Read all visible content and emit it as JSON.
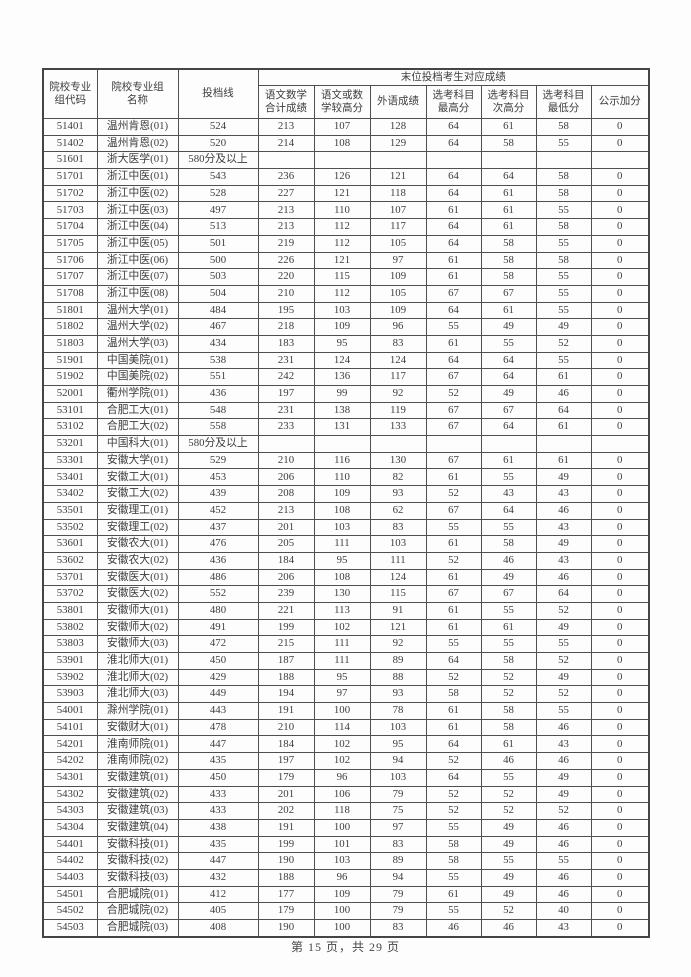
{
  "page": {
    "footer": "第 15 页，共 29 页"
  },
  "table": {
    "group_header": "末位投档考生对应成绩",
    "headers": {
      "code": "院校专业\n组代码",
      "name": "院校专业组\n名称",
      "line": "投档线",
      "chinese_math_total": "语文数学\n合计成绩",
      "chinese_or_math_higher": "语文或数\n学较高分",
      "foreign_language": "外语成绩",
      "elective_highest": "选考科目\n最高分",
      "elective_second": "选考科目\n次高分",
      "elective_lowest": "选考科目\n最低分",
      "public_bonus": "公示加分"
    },
    "rows": [
      [
        "51401",
        "温州肯恩(01)",
        "524",
        "213",
        "107",
        "128",
        "64",
        "61",
        "58",
        "0"
      ],
      [
        "51402",
        "温州肯恩(02)",
        "520",
        "214",
        "108",
        "129",
        "64",
        "58",
        "55",
        "0"
      ],
      [
        "51601",
        "浙大医学(01)",
        "580分及以上",
        "",
        "",
        "",
        "",
        "",
        "",
        ""
      ],
      [
        "51701",
        "浙江中医(01)",
        "543",
        "236",
        "126",
        "121",
        "64",
        "64",
        "58",
        "0"
      ],
      [
        "51702",
        "浙江中医(02)",
        "528",
        "227",
        "121",
        "118",
        "64",
        "61",
        "58",
        "0"
      ],
      [
        "51703",
        "浙江中医(03)",
        "497",
        "213",
        "110",
        "107",
        "61",
        "61",
        "55",
        "0"
      ],
      [
        "51704",
        "浙江中医(04)",
        "513",
        "213",
        "112",
        "117",
        "64",
        "61",
        "58",
        "0"
      ],
      [
        "51705",
        "浙江中医(05)",
        "501",
        "219",
        "112",
        "105",
        "64",
        "58",
        "55",
        "0"
      ],
      [
        "51706",
        "浙江中医(06)",
        "500",
        "226",
        "121",
        "97",
        "61",
        "58",
        "58",
        "0"
      ],
      [
        "51707",
        "浙江中医(07)",
        "503",
        "220",
        "115",
        "109",
        "61",
        "58",
        "55",
        "0"
      ],
      [
        "51708",
        "浙江中医(08)",
        "504",
        "210",
        "112",
        "105",
        "67",
        "67",
        "55",
        "0"
      ],
      [
        "51801",
        "温州大学(01)",
        "484",
        "195",
        "103",
        "109",
        "64",
        "61",
        "55",
        "0"
      ],
      [
        "51802",
        "温州大学(02)",
        "467",
        "218",
        "109",
        "96",
        "55",
        "49",
        "49",
        "0"
      ],
      [
        "51803",
        "温州大学(03)",
        "434",
        "183",
        "95",
        "83",
        "61",
        "55",
        "52",
        "0"
      ],
      [
        "51901",
        "中国美院(01)",
        "538",
        "231",
        "124",
        "124",
        "64",
        "64",
        "55",
        "0"
      ],
      [
        "51902",
        "中国美院(02)",
        "551",
        "242",
        "136",
        "117",
        "67",
        "64",
        "61",
        "0"
      ],
      [
        "52001",
        "衢州学院(01)",
        "436",
        "197",
        "99",
        "92",
        "52",
        "49",
        "46",
        "0"
      ],
      [
        "53101",
        "合肥工大(01)",
        "548",
        "231",
        "138",
        "119",
        "67",
        "67",
        "64",
        "0"
      ],
      [
        "53102",
        "合肥工大(02)",
        "558",
        "233",
        "131",
        "133",
        "67",
        "64",
        "61",
        "0"
      ],
      [
        "53201",
        "中国科大(01)",
        "580分及以上",
        "",
        "",
        "",
        "",
        "",
        "",
        ""
      ],
      [
        "53301",
        "安徽大学(01)",
        "529",
        "210",
        "116",
        "130",
        "67",
        "61",
        "61",
        "0"
      ],
      [
        "53401",
        "安徽工大(01)",
        "453",
        "206",
        "110",
        "82",
        "61",
        "55",
        "49",
        "0"
      ],
      [
        "53402",
        "安徽工大(02)",
        "439",
        "208",
        "109",
        "93",
        "52",
        "43",
        "43",
        "0"
      ],
      [
        "53501",
        "安徽理工(01)",
        "452",
        "213",
        "108",
        "62",
        "67",
        "64",
        "46",
        "0"
      ],
      [
        "53502",
        "安徽理工(02)",
        "437",
        "201",
        "103",
        "83",
        "55",
        "55",
        "43",
        "0"
      ],
      [
        "53601",
        "安徽农大(01)",
        "476",
        "205",
        "111",
        "103",
        "61",
        "58",
        "49",
        "0"
      ],
      [
        "53602",
        "安徽农大(02)",
        "436",
        "184",
        "95",
        "111",
        "52",
        "46",
        "43",
        "0"
      ],
      [
        "53701",
        "安徽医大(01)",
        "486",
        "206",
        "108",
        "124",
        "61",
        "49",
        "46",
        "0"
      ],
      [
        "53702",
        "安徽医大(02)",
        "552",
        "239",
        "130",
        "115",
        "67",
        "67",
        "64",
        "0"
      ],
      [
        "53801",
        "安徽师大(01)",
        "480",
        "221",
        "113",
        "91",
        "61",
        "55",
        "52",
        "0"
      ],
      [
        "53802",
        "安徽师大(02)",
        "491",
        "199",
        "102",
        "121",
        "61",
        "61",
        "49",
        "0"
      ],
      [
        "53803",
        "安徽师大(03)",
        "472",
        "215",
        "111",
        "92",
        "55",
        "55",
        "55",
        "0"
      ],
      [
        "53901",
        "淮北师大(01)",
        "450",
        "187",
        "111",
        "89",
        "64",
        "58",
        "52",
        "0"
      ],
      [
        "53902",
        "淮北师大(02)",
        "429",
        "188",
        "95",
        "88",
        "52",
        "52",
        "49",
        "0"
      ],
      [
        "53903",
        "淮北师大(03)",
        "449",
        "194",
        "97",
        "93",
        "58",
        "52",
        "52",
        "0"
      ],
      [
        "54001",
        "滁州学院(01)",
        "443",
        "191",
        "100",
        "78",
        "61",
        "58",
        "55",
        "0"
      ],
      [
        "54101",
        "安徽财大(01)",
        "478",
        "210",
        "114",
        "103",
        "61",
        "58",
        "46",
        "0"
      ],
      [
        "54201",
        "淮南师院(01)",
        "447",
        "184",
        "102",
        "95",
        "64",
        "61",
        "43",
        "0"
      ],
      [
        "54202",
        "淮南师院(02)",
        "435",
        "197",
        "102",
        "94",
        "52",
        "46",
        "46",
        "0"
      ],
      [
        "54301",
        "安徽建筑(01)",
        "450",
        "179",
        "96",
        "103",
        "64",
        "55",
        "49",
        "0"
      ],
      [
        "54302",
        "安徽建筑(02)",
        "433",
        "201",
        "106",
        "79",
        "52",
        "52",
        "49",
        "0"
      ],
      [
        "54303",
        "安徽建筑(03)",
        "433",
        "202",
        "118",
        "75",
        "52",
        "52",
        "52",
        "0"
      ],
      [
        "54304",
        "安徽建筑(04)",
        "438",
        "191",
        "100",
        "97",
        "55",
        "49",
        "46",
        "0"
      ],
      [
        "54401",
        "安徽科技(01)",
        "435",
        "199",
        "101",
        "83",
        "58",
        "49",
        "46",
        "0"
      ],
      [
        "54402",
        "安徽科技(02)",
        "447",
        "190",
        "103",
        "89",
        "58",
        "55",
        "55",
        "0"
      ],
      [
        "54403",
        "安徽科技(03)",
        "432",
        "188",
        "96",
        "94",
        "55",
        "49",
        "46",
        "0"
      ],
      [
        "54501",
        "合肥城院(01)",
        "412",
        "177",
        "109",
        "79",
        "61",
        "49",
        "46",
        "0"
      ],
      [
        "54502",
        "合肥城院(02)",
        "405",
        "179",
        "100",
        "79",
        "55",
        "52",
        "40",
        "0"
      ],
      [
        "54503",
        "合肥城院(03)",
        "408",
        "190",
        "100",
        "83",
        "46",
        "46",
        "43",
        "0"
      ]
    ]
  },
  "colors": {
    "border": "#4f4f4f",
    "text": "#3d3d3d",
    "background": "#fdfdfd"
  }
}
